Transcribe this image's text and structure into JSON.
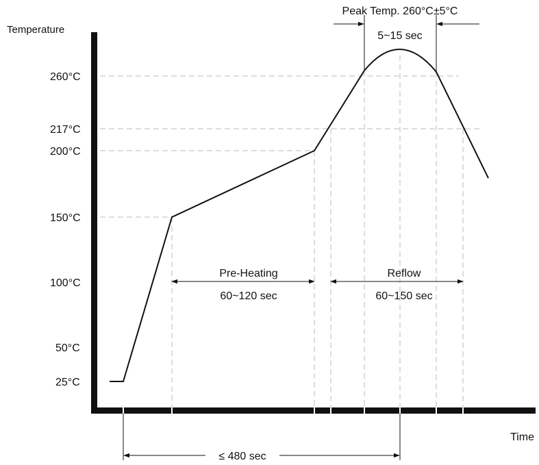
{
  "axes": {
    "y_title": "Temperature",
    "x_title": "Time"
  },
  "y_ticks": [
    "260°C",
    "217°C",
    "200°C",
    "150°C",
    "100°C",
    "50°C",
    "25°C"
  ],
  "annotations": {
    "peak": "Peak Temp. 260°C±5°C",
    "peak_duration": "5~15 sec",
    "preheat": "Pre-Heating",
    "preheat_duration": "60~120 sec",
    "reflow": "Reflow",
    "reflow_duration": "60~150 sec",
    "total": "≤ 480 sec"
  },
  "colors": {
    "line": "#111111",
    "guide": "#bbbbbb"
  }
}
